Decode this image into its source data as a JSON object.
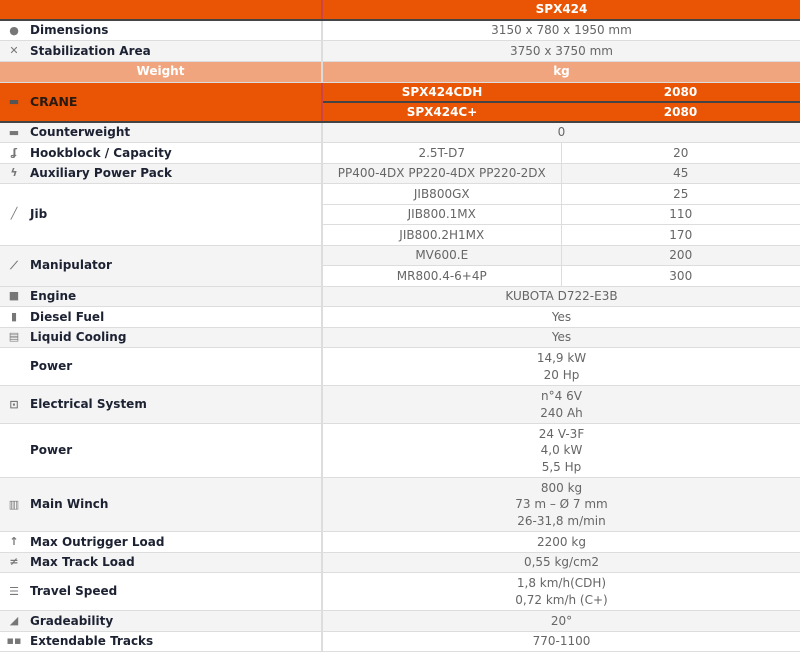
{
  "header": {
    "model": "SPX424"
  },
  "rows_top": [
    {
      "label": "Dimensions",
      "value": "3150 x 780 x 1950 mm",
      "icon": "dimensions-icon"
    },
    {
      "label": "Stabilization Area",
      "value": "3750 x 3750 mm",
      "icon": "stabilization-icon"
    }
  ],
  "weight": {
    "label": "Weight",
    "unit": "kg"
  },
  "crane": {
    "label": "CRANE",
    "icon": "crane-icon",
    "variants": [
      {
        "name": "SPX424CDH",
        "kg": "2080"
      },
      {
        "name": "SPX424C+",
        "kg": "2080"
      }
    ]
  },
  "counterweight": {
    "label": "Counterweight",
    "value": "0"
  },
  "hookblock": {
    "label": "Hookblock / Capacity",
    "value": "2.5T-D7",
    "kg": "20"
  },
  "aux": {
    "label": "Auxiliary Power Pack",
    "value": "PP400-4DX PP220-4DX PP220-2DX",
    "kg": "45"
  },
  "jib": {
    "label": "Jib",
    "items": [
      {
        "name": "JIB800GX",
        "kg": "25"
      },
      {
        "name": "JIB800.1MX",
        "kg": "110"
      },
      {
        "name": "JIB800.2H1MX",
        "kg": "170"
      }
    ]
  },
  "manipulator": {
    "label": "Manipulator",
    "items": [
      {
        "name": "MV600.E",
        "kg": "200"
      },
      {
        "name": "MR800.4-6+4P",
        "kg": "300"
      }
    ]
  },
  "engine": {
    "label": "Engine",
    "value": "KUBOTA D722-E3B"
  },
  "diesel": {
    "label": "Diesel Fuel",
    "value": "Yes"
  },
  "cooling": {
    "label": "Liquid Cooling",
    "value": "Yes"
  },
  "power1": {
    "label": "Power",
    "lines": [
      "14,9 kW",
      "20 Hp"
    ]
  },
  "electrical": {
    "label": "Electrical System",
    "lines": [
      "n°4 6V",
      "240 Ah"
    ]
  },
  "power2": {
    "label": "Power",
    "lines": [
      "24 V-3F",
      "4,0 kW",
      "5,5 Hp"
    ]
  },
  "winch": {
    "label": "Main Winch",
    "lines": [
      "800 kg",
      "73 m – Ø 7 mm",
      "26-31,8 m/min"
    ]
  },
  "outrigger": {
    "label": "Max Outrigger Load",
    "value": "2200 kg"
  },
  "track": {
    "label": "Max Track Load",
    "value": "0,55 kg/cm2"
  },
  "travel": {
    "label": "Travel Speed",
    "lines": [
      "1,8 km/h(CDH)",
      "0,72 km/h (C+)"
    ]
  },
  "grade": {
    "label": "Gradeability",
    "value": "20°"
  },
  "tracks": {
    "label": "Extendable Tracks",
    "value": "770-1100"
  },
  "colors": {
    "accent": "#e95504",
    "weight_band": "#f1a57e"
  }
}
